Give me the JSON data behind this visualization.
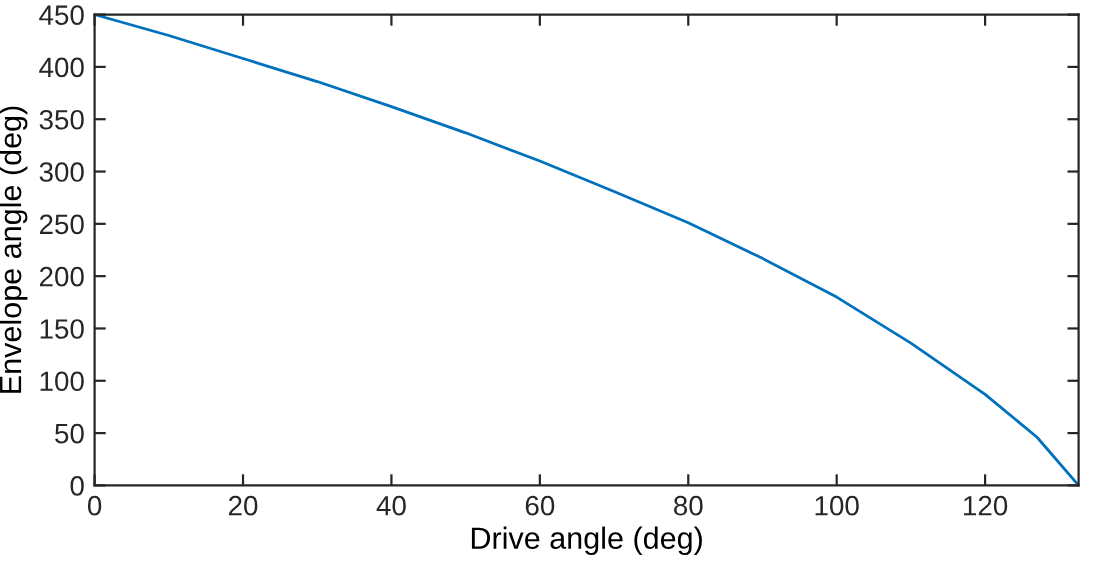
{
  "chart_data": {
    "type": "line",
    "xlabel": "Drive angle (deg)",
    "ylabel": "Envelope angle (deg)",
    "series": [
      {
        "color": "#0072bd",
        "x": [
          0,
          10,
          20,
          30,
          40,
          50,
          60,
          70,
          80,
          90,
          100,
          110,
          120,
          127,
          132.6
        ],
        "values": [
          450,
          430,
          408,
          386,
          362,
          337,
          310,
          281,
          251,
          217,
          180,
          136,
          87,
          46,
          0
        ]
      }
    ],
    "xlim": [
      0,
      132.6
    ],
    "xticks": [
      0,
      20,
      40,
      60,
      80,
      100,
      120
    ],
    "ylim": [
      0,
      450
    ],
    "yticks": [
      0,
      50,
      100,
      150,
      200,
      250,
      300,
      350,
      400,
      450
    ],
    "grid": false,
    "legend": false
  }
}
